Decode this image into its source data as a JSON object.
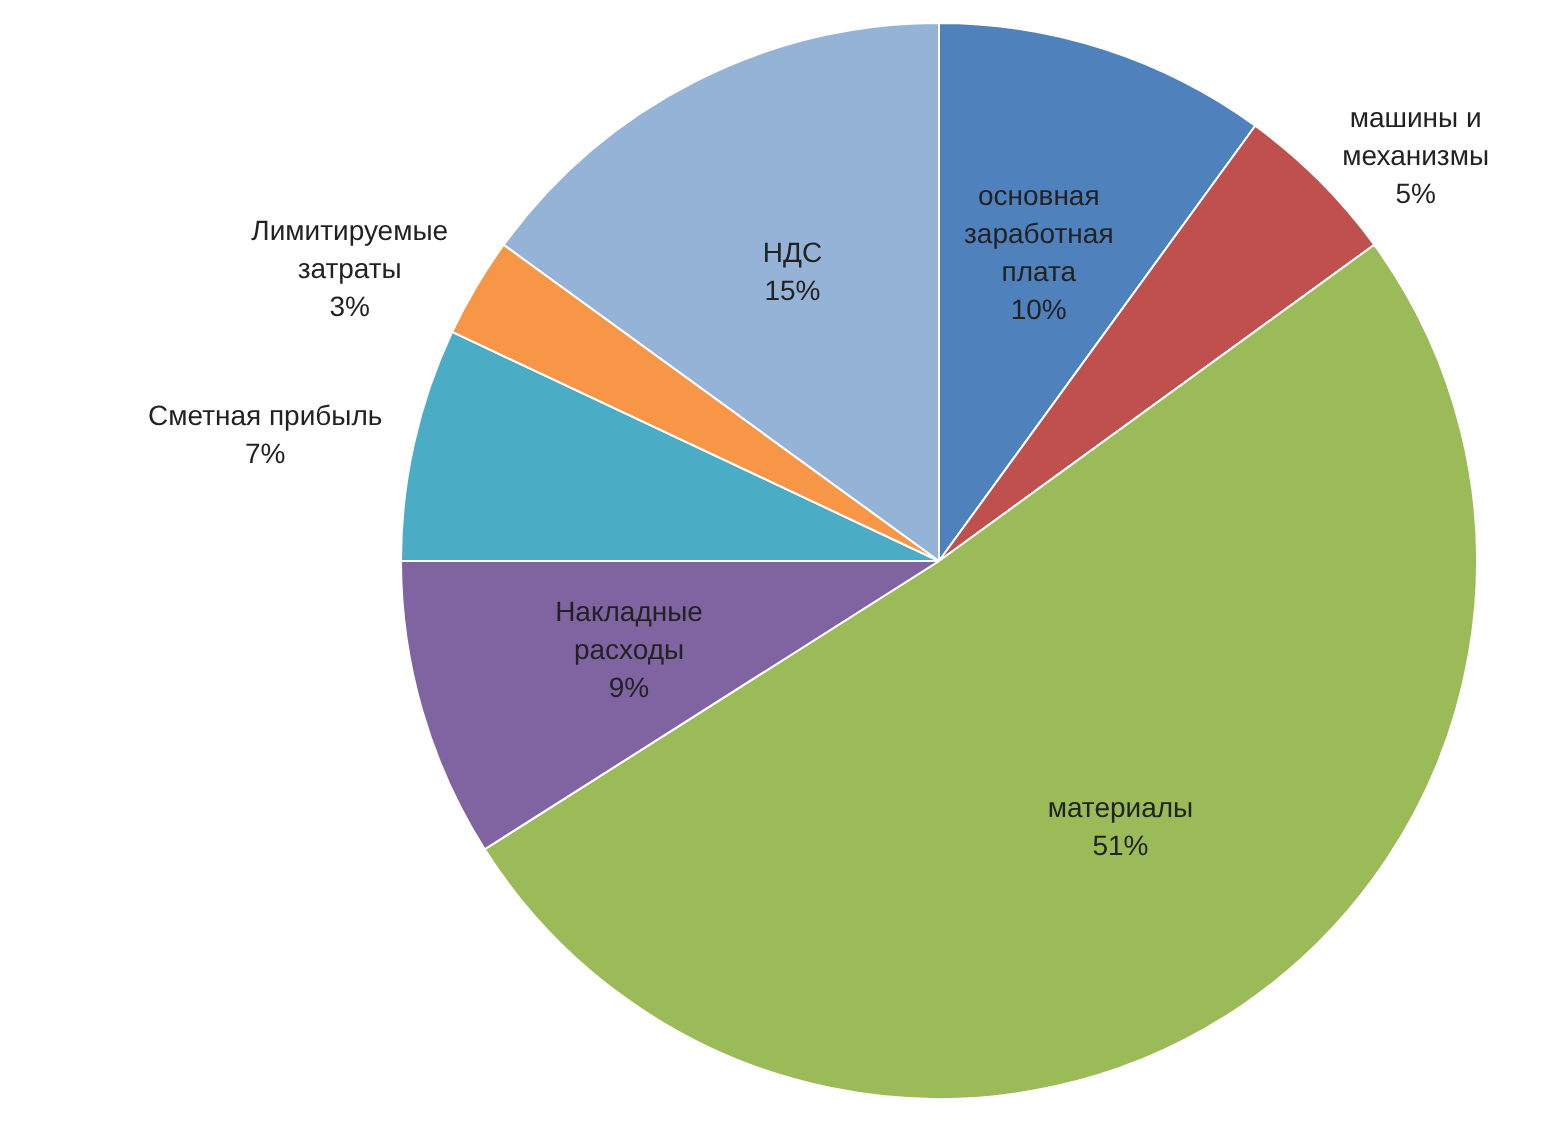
{
  "chart_data": {
    "type": "pie",
    "categories": [
      "основная заработная плата",
      "машины и механизмы",
      "материалы",
      "Накладные расходы",
      "Сметная прибыль",
      "Лимитируемые затраты",
      "НДС"
    ],
    "values": [
      10,
      5,
      51,
      9,
      7,
      3,
      15
    ],
    "colors": [
      "#4f81bd",
      "#c0504d",
      "#9bbb59",
      "#8064a2",
      "#4bacc6",
      "#f79646",
      "#95b3d7"
    ],
    "value_labels": [
      "10%",
      "5%",
      "51%",
      "9%",
      "7%",
      "3%",
      "15%"
    ],
    "legend": false
  }
}
